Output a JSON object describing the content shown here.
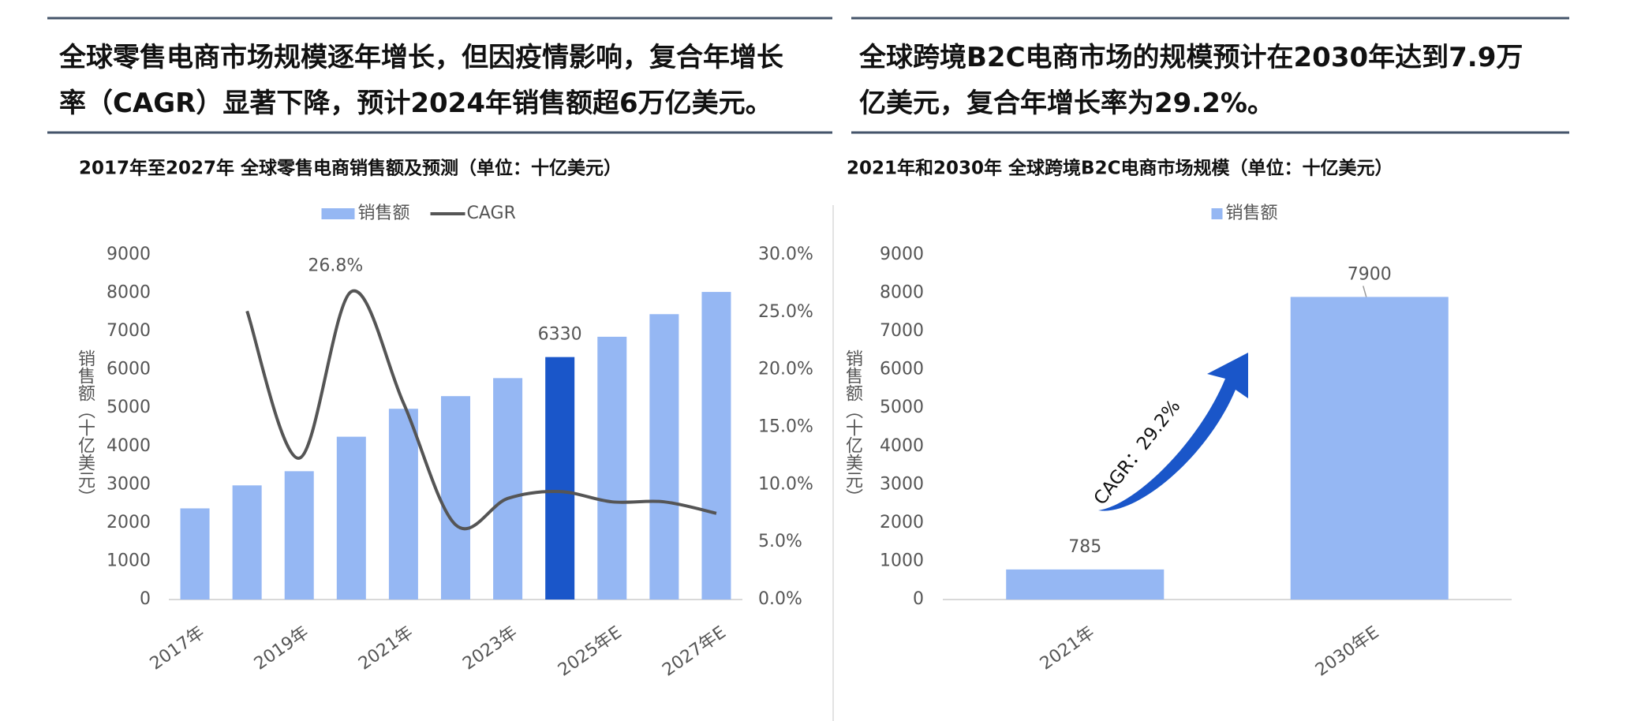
{
  "headlines": [
    [
      "全球零售电商市场规模逐年增长，但因疫情影响，复合年增长",
      "率（CAGR）显著下降，预计2024年销售额超6万亿美元。"
    ],
    [
      "全球跨境B2C电商市场的规模预计在2030年达到7.9万",
      "亿美元，复合年增长率为29.2%。"
    ]
  ],
  "chart_data": [
    {
      "type": "bar",
      "title": "2017年至2027年 全球零售电商销售额及预测（单位：十亿美元）",
      "y_label": "销售额（十亿美元）",
      "categories": [
        "2017年",
        null,
        "2019年",
        null,
        "2021年",
        null,
        "2023年",
        null,
        "2025年E",
        null,
        "2027年E"
      ],
      "series": [
        {
          "name": "销售额",
          "type": "bar",
          "color": "#95b7f3",
          "colors": [
            "#95b7f3",
            "#95b7f3",
            "#95b7f3",
            "#95b7f3",
            "#95b7f3",
            "#95b7f3",
            "#95b7f3",
            "#1a56c9",
            "#95b7f3",
            "#95b7f3",
            "#95b7f3"
          ],
          "values": [
            2380,
            2980,
            3350,
            4250,
            4980,
            5310,
            5780,
            6330,
            6860,
            7450,
            8030
          ],
          "value_labels": [
            null,
            null,
            null,
            null,
            null,
            null,
            null,
            "6330",
            null,
            null,
            null
          ]
        },
        {
          "name": "CAGR",
          "type": "line",
          "axis": "y2",
          "color": "#555555",
          "values": [
            null,
            25.1,
            12.3,
            26.8,
            17.1,
            6.5,
            8.8,
            9.4,
            8.5,
            8.5,
            7.5
          ],
          "value_labels": [
            null,
            null,
            null,
            "26.8%",
            null,
            null,
            null,
            null,
            null,
            null,
            null
          ]
        }
      ],
      "ylim": [
        0,
        9000
      ],
      "yticks": [
        0,
        1000,
        2000,
        3000,
        4000,
        5000,
        6000,
        7000,
        8000,
        9000
      ],
      "y2lim": [
        0,
        30
      ],
      "y2ticks": [
        {
          "value": 0,
          "label": "0.0%"
        },
        {
          "value": 5,
          "label": "5.0%"
        },
        {
          "value": 10,
          "label": "10.0%"
        },
        {
          "value": 15,
          "label": "15.0%"
        },
        {
          "value": 20,
          "label": "20.0%"
        },
        {
          "value": 25,
          "label": "25.0%"
        },
        {
          "value": 30,
          "label": "30.0%"
        }
      ],
      "legend": "top"
    },
    {
      "type": "bar",
      "title": "2021年和2030年 全球跨境B2C电商市场规模（单位：十亿美元）",
      "y_label": "销售额（十亿美元）",
      "annotation": "CAGR：29.2%",
      "categories": [
        "2021年",
        "2030年E"
      ],
      "series": [
        {
          "name": "销售额",
          "type": "bar",
          "color": "#95b7f3",
          "values": [
            785,
            7900
          ],
          "value_labels": [
            "785",
            "7900"
          ]
        }
      ],
      "ylim": [
        0,
        9000
      ],
      "yticks": [
        0,
        1000,
        2000,
        3000,
        4000,
        5000,
        6000,
        7000,
        8000,
        9000
      ],
      "legend": "top"
    }
  ]
}
